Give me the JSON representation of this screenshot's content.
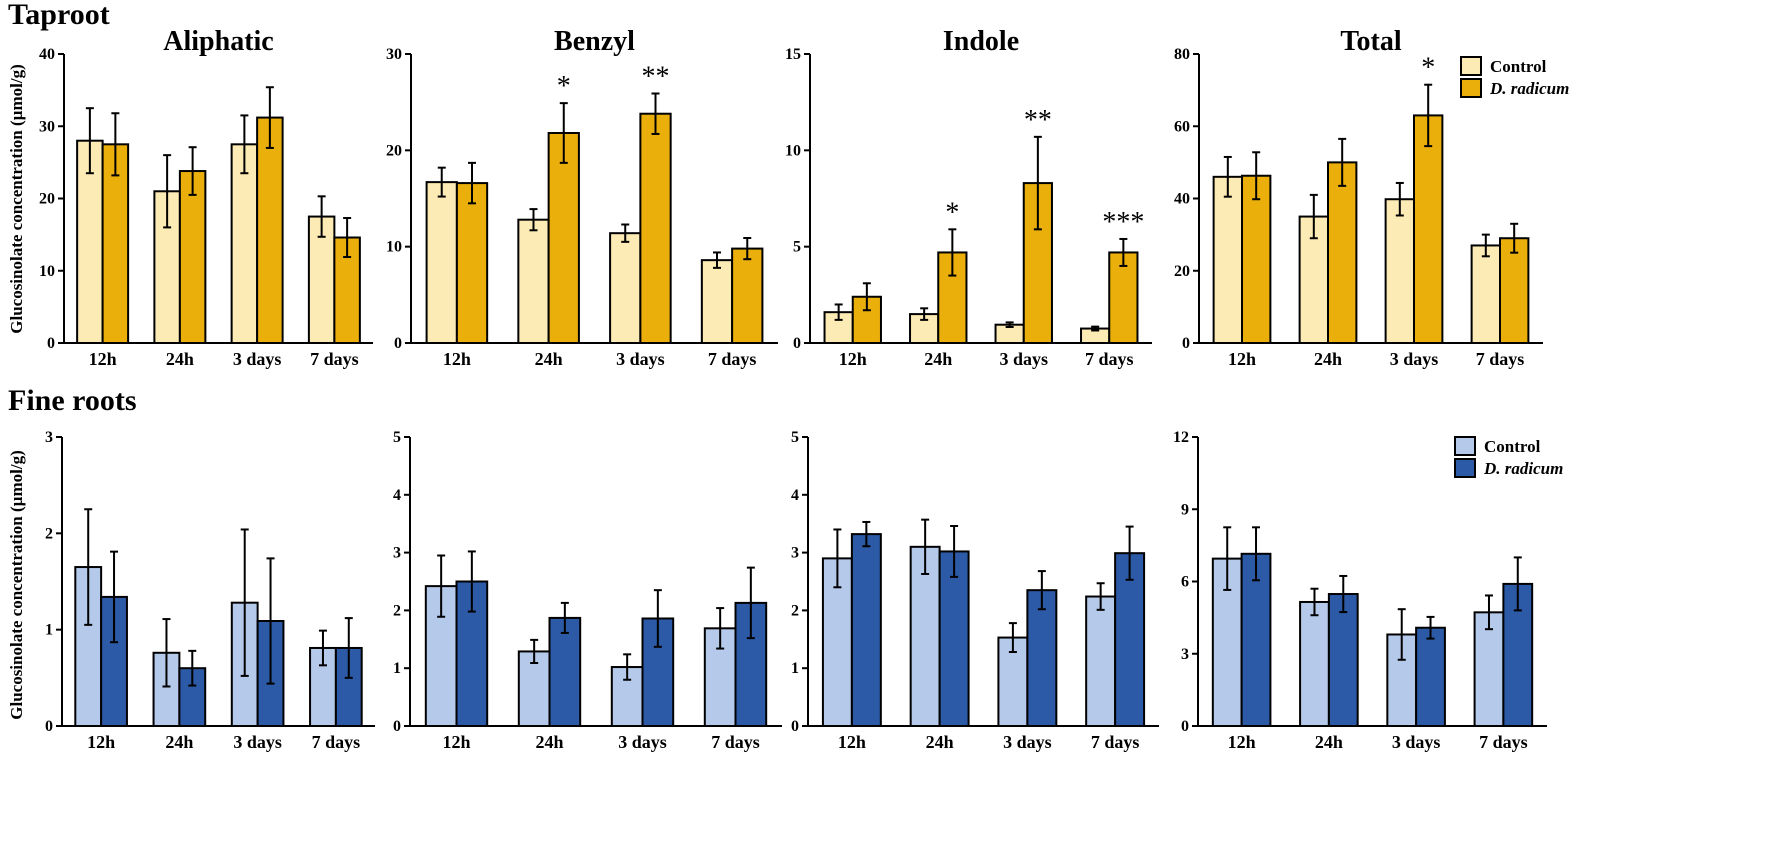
{
  "figure": {
    "sections": [
      {
        "title": "Taproot",
        "ylabel": "Glucosinolate concentration (µmol/g)",
        "legend": {
          "items": [
            {
              "label": "Control",
              "italic": false,
              "color": "#FDEBB5"
            },
            {
              "label": "D. radicum",
              "italic": true,
              "color": "#EBAF0C"
            }
          ]
        }
      },
      {
        "title": "Fine roots",
        "ylabel": "Glucosinolate concentration (µmol/g)",
        "legend": {
          "items": [
            {
              "label": "Control",
              "italic": false,
              "color": "#B5C9EB"
            },
            {
              "label": "D. radicum",
              "italic": true,
              "color": "#2C5AA6"
            }
          ]
        }
      }
    ]
  },
  "chart_data": [
    {
      "type": "bar",
      "section": 0,
      "title": "Aliphatic",
      "ylim": [
        0,
        40
      ],
      "yticks": [
        0,
        10,
        20,
        30,
        40
      ],
      "categories": [
        "12h",
        "24h",
        "3 days",
        "7 days"
      ],
      "series": [
        {
          "name": "Control",
          "color": "#FDEBB5",
          "values": [
            28,
            21,
            27.5,
            17.5
          ],
          "errors": [
            4.5,
            5,
            4,
            2.8
          ]
        },
        {
          "name": "D. radicum",
          "color": "#EBAF0C",
          "values": [
            27.5,
            23.8,
            31.2,
            14.6
          ],
          "errors": [
            4.3,
            3.3,
            4.2,
            2.7
          ]
        }
      ],
      "significance": [
        "",
        "",
        "",
        ""
      ]
    },
    {
      "type": "bar",
      "section": 0,
      "title": "Benzyl",
      "ylim": [
        0,
        30
      ],
      "yticks": [
        0,
        10,
        20,
        30
      ],
      "categories": [
        "12h",
        "24h",
        "3 days",
        "7 days"
      ],
      "series": [
        {
          "name": "Control",
          "color": "#FDEBB5",
          "values": [
            16.7,
            12.8,
            11.4,
            8.6
          ],
          "errors": [
            1.5,
            1.1,
            0.9,
            0.8
          ]
        },
        {
          "name": "D. radicum",
          "color": "#EBAF0C",
          "values": [
            16.6,
            21.8,
            23.8,
            9.8
          ],
          "errors": [
            2.1,
            3.1,
            2.1,
            1.1
          ]
        }
      ],
      "significance": [
        "",
        "*",
        "**",
        ""
      ]
    },
    {
      "type": "bar",
      "section": 0,
      "title": "Indole",
      "ylim": [
        0,
        15
      ],
      "yticks": [
        0,
        5,
        10,
        15
      ],
      "categories": [
        "12h",
        "24h",
        "3 days",
        "7 days"
      ],
      "series": [
        {
          "name": "Control",
          "color": "#FDEBB5",
          "values": [
            1.6,
            1.5,
            0.95,
            0.75
          ],
          "errors": [
            0.4,
            0.3,
            0.12,
            0.1
          ]
        },
        {
          "name": "D. radicum",
          "color": "#EBAF0C",
          "values": [
            2.4,
            4.7,
            8.3,
            4.7
          ],
          "errors": [
            0.7,
            1.2,
            2.4,
            0.7
          ]
        }
      ],
      "significance": [
        "",
        "*",
        "**",
        "***"
      ]
    },
    {
      "type": "bar",
      "section": 0,
      "title": "Total",
      "ylim": [
        0,
        80
      ],
      "yticks": [
        0,
        20,
        40,
        60,
        80
      ],
      "categories": [
        "12h",
        "24h",
        "3 days",
        "7 days"
      ],
      "series": [
        {
          "name": "Control",
          "color": "#FDEBB5",
          "values": [
            46,
            35,
            39.8,
            27
          ],
          "errors": [
            5.5,
            6,
            4.5,
            3
          ]
        },
        {
          "name": "D. radicum",
          "color": "#EBAF0C",
          "values": [
            46.3,
            50,
            63,
            29
          ],
          "errors": [
            6.5,
            6.5,
            8.5,
            4
          ]
        }
      ],
      "significance": [
        "",
        "",
        "*",
        ""
      ]
    },
    {
      "type": "bar",
      "section": 1,
      "title": "",
      "ylim": [
        0,
        3
      ],
      "yticks": [
        0,
        1,
        2,
        3
      ],
      "categories": [
        "12h",
        "24h",
        "3 days",
        "7 days"
      ],
      "series": [
        {
          "name": "Control",
          "color": "#B5C9EB",
          "values": [
            1.65,
            0.76,
            1.28,
            0.81
          ],
          "errors": [
            0.6,
            0.35,
            0.76,
            0.18
          ]
        },
        {
          "name": "D. radicum",
          "color": "#2C5AA6",
          "values": [
            1.34,
            0.6,
            1.09,
            0.81
          ],
          "errors": [
            0.47,
            0.18,
            0.65,
            0.31
          ]
        }
      ],
      "significance": [
        "",
        "",
        "",
        ""
      ]
    },
    {
      "type": "bar",
      "section": 1,
      "title": "",
      "ylim": [
        0,
        5
      ],
      "yticks": [
        0,
        1,
        2,
        3,
        4,
        5
      ],
      "categories": [
        "12h",
        "24h",
        "3 days",
        "7 days"
      ],
      "series": [
        {
          "name": "Control",
          "color": "#B5C9EB",
          "values": [
            2.42,
            1.29,
            1.02,
            1.69
          ],
          "errors": [
            0.53,
            0.2,
            0.22,
            0.35
          ]
        },
        {
          "name": "D. radicum",
          "color": "#2C5AA6",
          "values": [
            2.5,
            1.87,
            1.86,
            2.13
          ],
          "errors": [
            0.52,
            0.26,
            0.49,
            0.61
          ]
        }
      ],
      "significance": [
        "",
        "",
        "",
        ""
      ]
    },
    {
      "type": "bar",
      "section": 1,
      "title": "",
      "ylim": [
        0,
        5
      ],
      "yticks": [
        0,
        1,
        2,
        3,
        4,
        5
      ],
      "categories": [
        "12h",
        "24h",
        "3 days",
        "7 days"
      ],
      "series": [
        {
          "name": "Control",
          "color": "#B5C9EB",
          "values": [
            2.9,
            3.1,
            1.53,
            2.24
          ],
          "errors": [
            0.5,
            0.47,
            0.25,
            0.23
          ]
        },
        {
          "name": "D. radicum",
          "color": "#2C5AA6",
          "values": [
            3.32,
            3.02,
            2.35,
            2.99
          ],
          "errors": [
            0.21,
            0.44,
            0.33,
            0.46
          ]
        }
      ],
      "significance": [
        "",
        "",
        "",
        ""
      ]
    },
    {
      "type": "bar",
      "section": 1,
      "title": "",
      "ylim": [
        0,
        12
      ],
      "yticks": [
        0,
        3,
        6,
        9,
        12
      ],
      "categories": [
        "12h",
        "24h",
        "3 days",
        "7 days"
      ],
      "series": [
        {
          "name": "Control",
          "color": "#B5C9EB",
          "values": [
            6.95,
            5.15,
            3.8,
            4.72
          ],
          "errors": [
            1.3,
            0.55,
            1.05,
            0.7
          ]
        },
        {
          "name": "D. radicum",
          "color": "#2C5AA6",
          "values": [
            7.15,
            5.48,
            4.08,
            5.9
          ],
          "errors": [
            1.1,
            0.75,
            0.45,
            1.1
          ]
        }
      ],
      "significance": [
        "",
        "",
        "",
        ""
      ]
    }
  ]
}
